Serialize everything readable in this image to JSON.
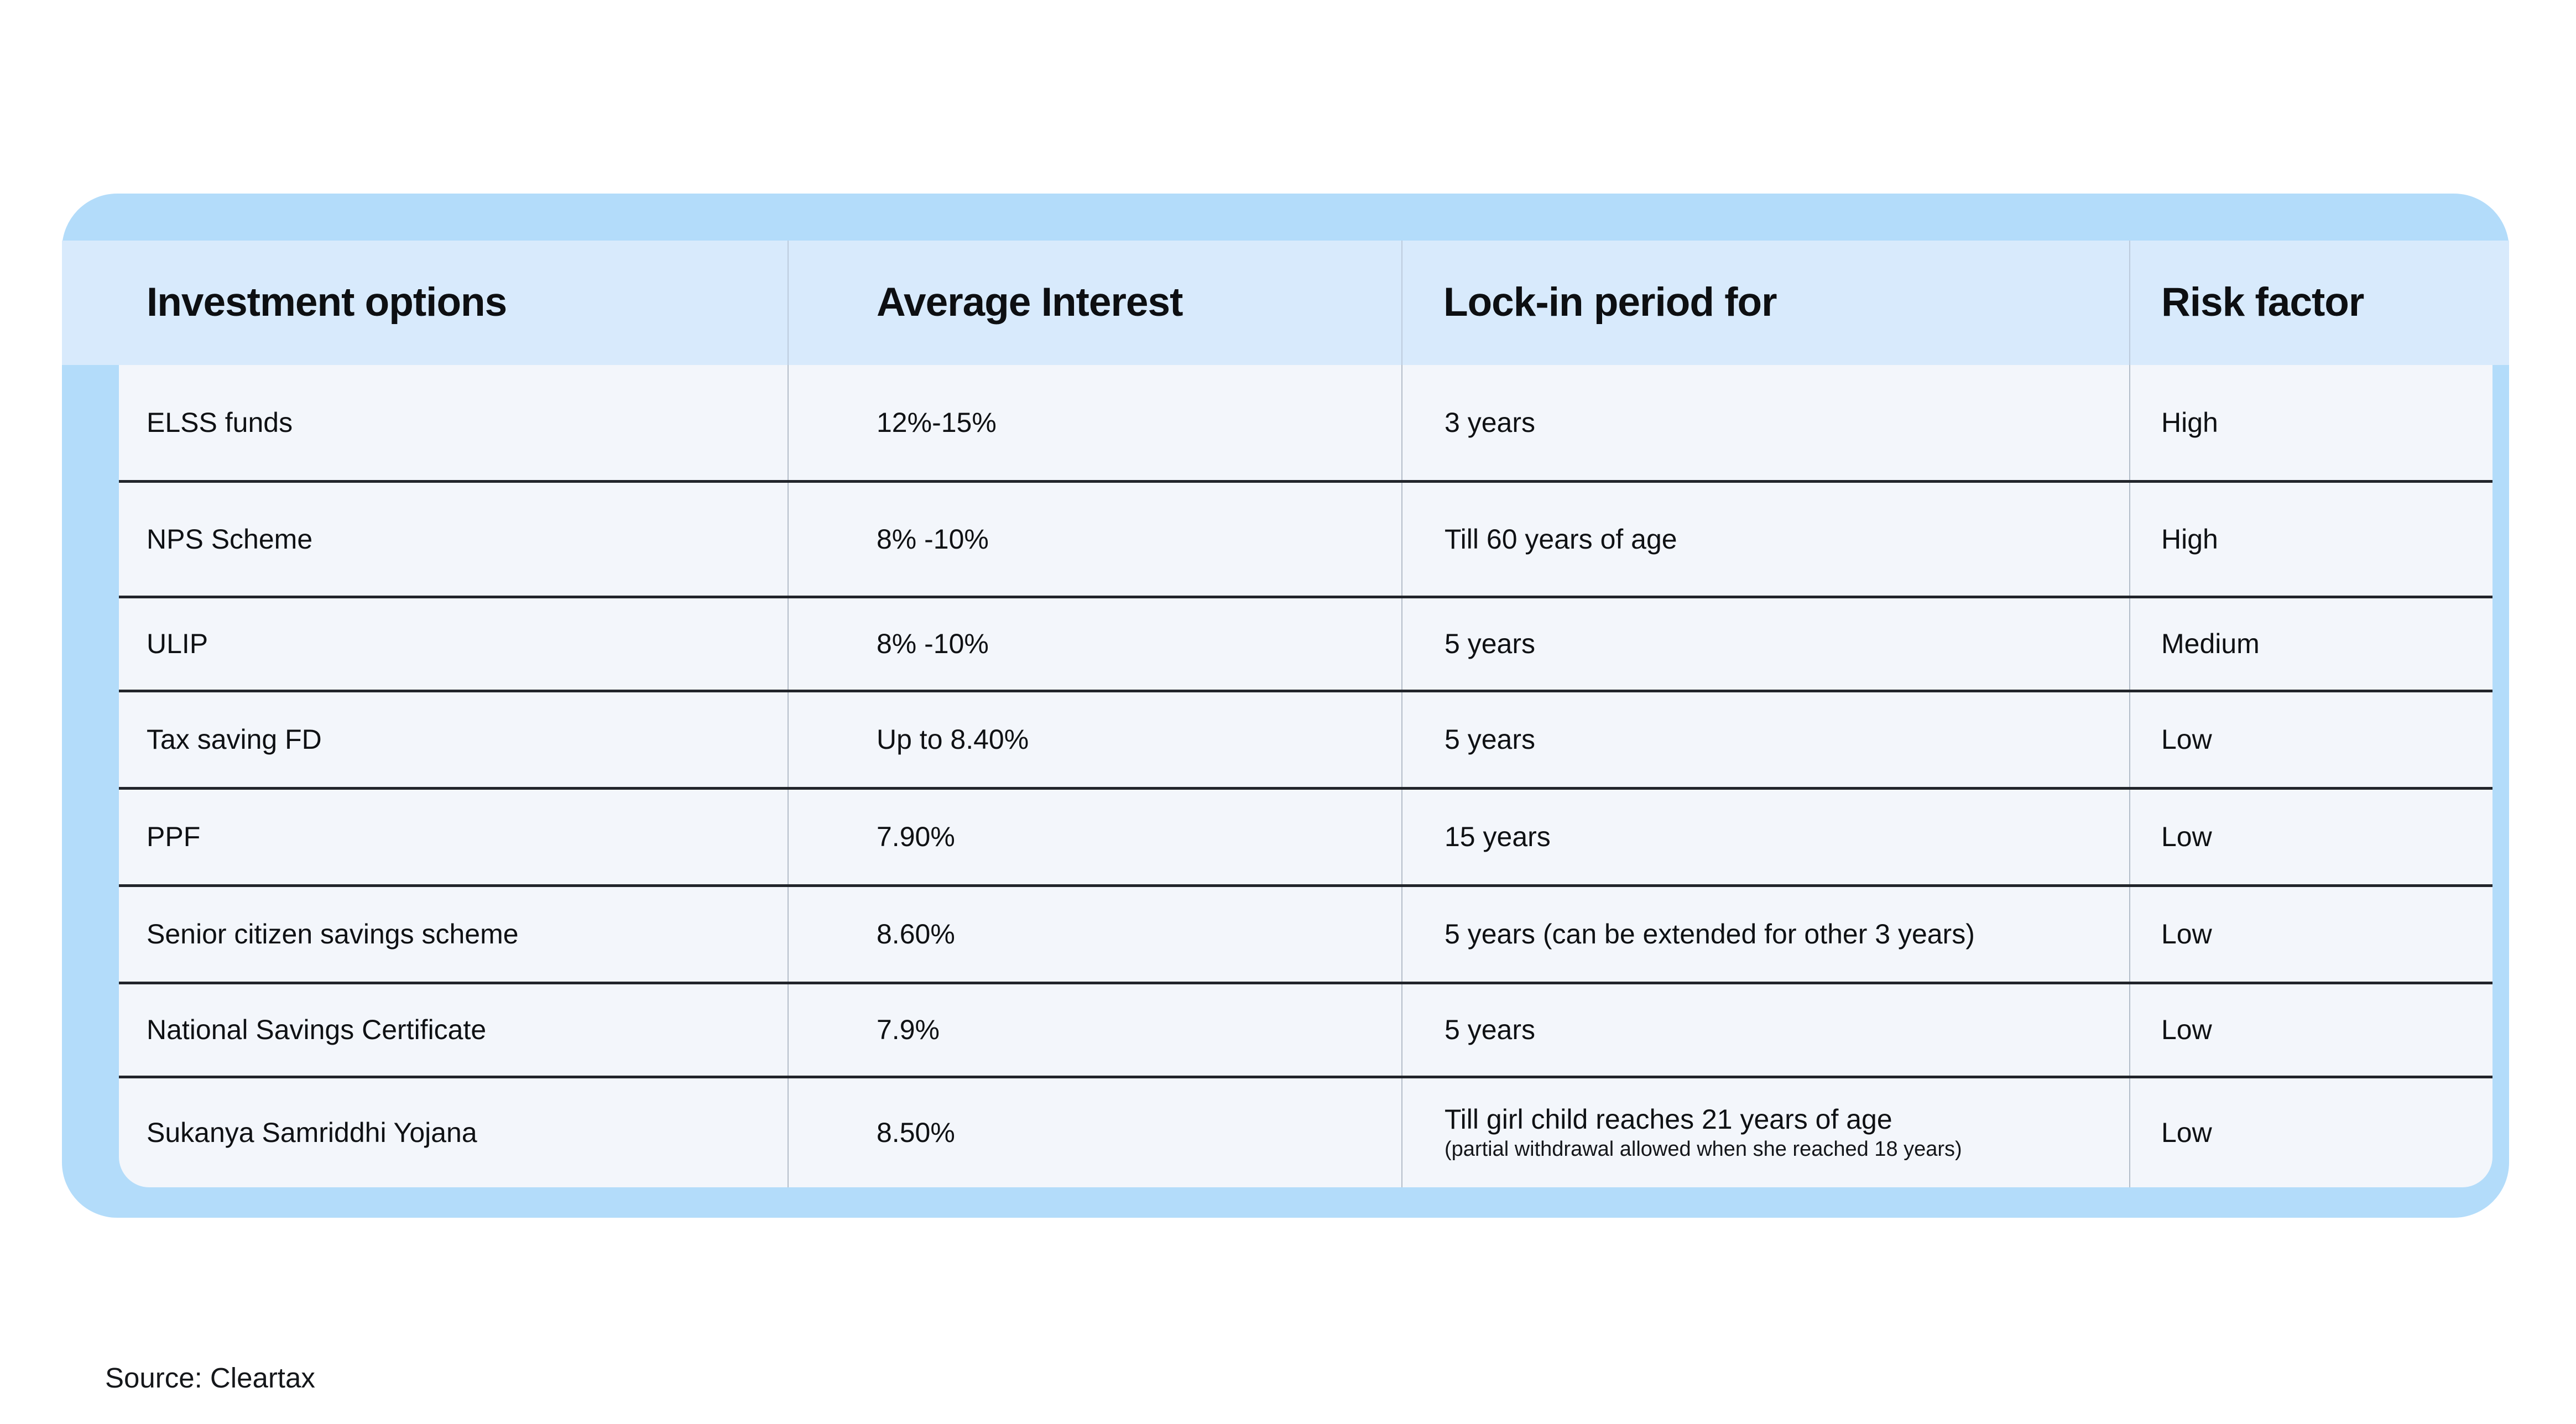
{
  "colors": {
    "card_blue": "#b3dcfa",
    "header_blue": "#d8eafc",
    "body_bg": "#f3f6fb",
    "row_divider": "#22252b",
    "column_divider": "#b4bdc9",
    "text": "#0f1114",
    "page_bg": "#ffffff"
  },
  "table": {
    "headers": [
      "Investment options",
      "Average Interest",
      "Lock-in period for",
      "Risk factor"
    ],
    "rows": [
      {
        "option": "ELSS funds",
        "interest": "12%-15%",
        "lockin": "3 years",
        "lockin_note": "",
        "risk": "High"
      },
      {
        "option": "NPS Scheme",
        "interest": "8% -10%",
        "lockin": "Till 60 years of age",
        "lockin_note": "",
        "risk": "High"
      },
      {
        "option": "ULIP",
        "interest": "8% -10%",
        "lockin": "5 years",
        "lockin_note": "",
        "risk": "Medium"
      },
      {
        "option": "Tax saving FD",
        "interest": "Up to 8.40%",
        "lockin": "5 years",
        "lockin_note": "",
        "risk": "Low"
      },
      {
        "option": "PPF",
        "interest": "7.90%",
        "lockin": "15 years",
        "lockin_note": "",
        "risk": "Low"
      },
      {
        "option": "Senior citizen savings scheme",
        "interest": "8.60%",
        "lockin": "5 years (can be extended for other 3 years)",
        "lockin_note": "",
        "risk": "Low"
      },
      {
        "option": "National Savings Certificate",
        "interest": "7.9%",
        "lockin": "5 years",
        "lockin_note": "",
        "risk": "Low"
      },
      {
        "option": "Sukanya Samriddhi Yojana",
        "interest": "8.50%",
        "lockin": "Till girl child reaches 21 years of age",
        "lockin_note": "(partial withdrawal allowed when she reached 18 years)",
        "risk": "Low"
      }
    ]
  },
  "footer": {
    "source": "Source: Cleartax"
  },
  "chart_data": {
    "type": "table",
    "title": "",
    "columns": [
      "Investment options",
      "Average Interest",
      "Lock-in period for",
      "Risk factor"
    ],
    "rows": [
      [
        "ELSS funds",
        "12%-15%",
        "3 years",
        "High"
      ],
      [
        "NPS Scheme",
        "8% -10%",
        "Till 60 years of age",
        "High"
      ],
      [
        "ULIP",
        "8% -10%",
        "5 years",
        "Medium"
      ],
      [
        "Tax saving FD",
        "Up to 8.40%",
        "5 years",
        "Low"
      ],
      [
        "PPF",
        "7.90%",
        "15 years",
        "Low"
      ],
      [
        "Senior citizen savings scheme",
        "8.60%",
        "5 years (can be extended for other 3 years)",
        "Low"
      ],
      [
        "National Savings Certificate",
        "7.9%",
        "5 years",
        "Low"
      ],
      [
        "Sukanya Samriddhi Yojana",
        "8.50%",
        "Till girl child reaches 21 years of age (partial withdrawal allowed when she reached 18 years)",
        "Low"
      ]
    ],
    "source": "Cleartax",
    "layout_hints": {
      "header_position": "top",
      "grid": "horizontal dark rules between rows, light vertical rules between columns"
    }
  }
}
